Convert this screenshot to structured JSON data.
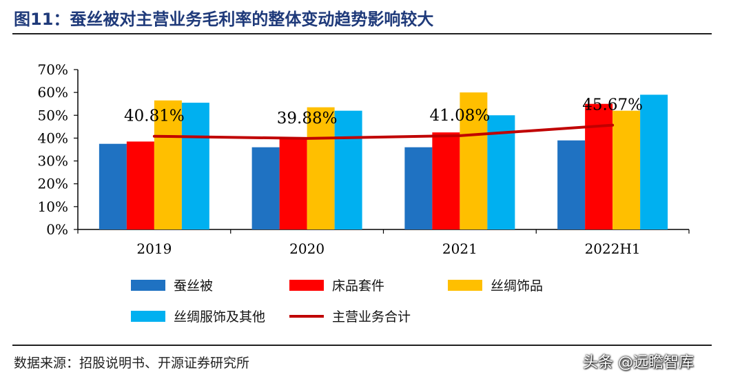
{
  "header": {
    "title": "图11：蚕丝被对主营业务毛利率的整体变动趋势影响较大"
  },
  "footer": {
    "source": "数据来源：招股说明书、开源证券研究所",
    "watermark": "头条 @远瞻智库"
  },
  "chart_data": {
    "type": "bar",
    "categories": [
      "2019",
      "2020",
      "2021",
      "2022H1"
    ],
    "ylim": [
      0,
      70
    ],
    "yticks": [
      "0%",
      "10%",
      "20%",
      "30%",
      "40%",
      "50%",
      "60%",
      "70%"
    ],
    "grid": false,
    "legend_position": "bottom",
    "series": [
      {
        "name": "蚕丝被",
        "type": "bar",
        "color": "#1f72c2",
        "values": [
          37.5,
          36.0,
          36.0,
          39.0
        ]
      },
      {
        "name": "床品套件",
        "type": "bar",
        "color": "#ff0000",
        "values": [
          38.5,
          40.0,
          42.5,
          55.0
        ]
      },
      {
        "name": "丝绸饰品",
        "type": "bar",
        "color": "#ffbf00",
        "values": [
          56.5,
          53.5,
          60.0,
          52.0
        ]
      },
      {
        "name": "丝绸服饰及其他",
        "type": "bar",
        "color": "#00b0f0",
        "values": [
          55.5,
          52.0,
          50.0,
          59.0
        ]
      },
      {
        "name": "主营业务合计",
        "type": "line",
        "color": "#c00000",
        "values": [
          40.81,
          39.88,
          41.08,
          45.67
        ]
      }
    ],
    "data_labels": [
      "40.81%",
      "39.88%",
      "41.08%",
      "45.67%"
    ]
  }
}
